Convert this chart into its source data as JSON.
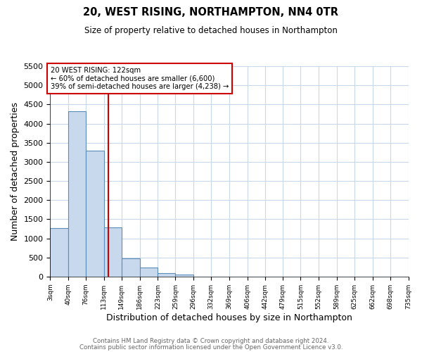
{
  "title": "20, WEST RISING, NORTHAMPTON, NN4 0TR",
  "subtitle": "Size of property relative to detached houses in Northampton",
  "xlabel": "Distribution of detached houses by size in Northampton",
  "ylabel": "Number of detached properties",
  "bin_edges": [
    3,
    40,
    76,
    113,
    149,
    186,
    223,
    259,
    296,
    332,
    369,
    406,
    442,
    479,
    515,
    552,
    589,
    625,
    662,
    698,
    735
  ],
  "bar_heights": [
    1270,
    4330,
    3300,
    1290,
    480,
    240,
    90,
    50,
    0,
    0,
    0,
    0,
    0,
    0,
    0,
    0,
    0,
    0,
    0,
    0
  ],
  "bar_color": "#c9d9ed",
  "bar_edge_color": "#5b8db8",
  "property_line_x": 122,
  "property_line_color": "#cc0000",
  "annotation_title": "20 WEST RISING: 122sqm",
  "annotation_line1": "← 60% of detached houses are smaller (6,600)",
  "annotation_line2": "39% of semi-detached houses are larger (4,238) →",
  "annotation_box_color": "#cc0000",
  "ylim": [
    0,
    5500
  ],
  "yticks": [
    0,
    500,
    1000,
    1500,
    2000,
    2500,
    3000,
    3500,
    4000,
    4500,
    5000,
    5500
  ],
  "tick_labels": [
    "3sqm",
    "40sqm",
    "76sqm",
    "113sqm",
    "149sqm",
    "186sqm",
    "223sqm",
    "259sqm",
    "296sqm",
    "332sqm",
    "369sqm",
    "406sqm",
    "442sqm",
    "479sqm",
    "515sqm",
    "552sqm",
    "589sqm",
    "625sqm",
    "662sqm",
    "698sqm",
    "735sqm"
  ],
  "footer1": "Contains HM Land Registry data © Crown copyright and database right 2024.",
  "footer2": "Contains public sector information licensed under the Open Government Licence v3.0.",
  "bg_color": "#ffffff",
  "grid_color": "#c8d8e8"
}
